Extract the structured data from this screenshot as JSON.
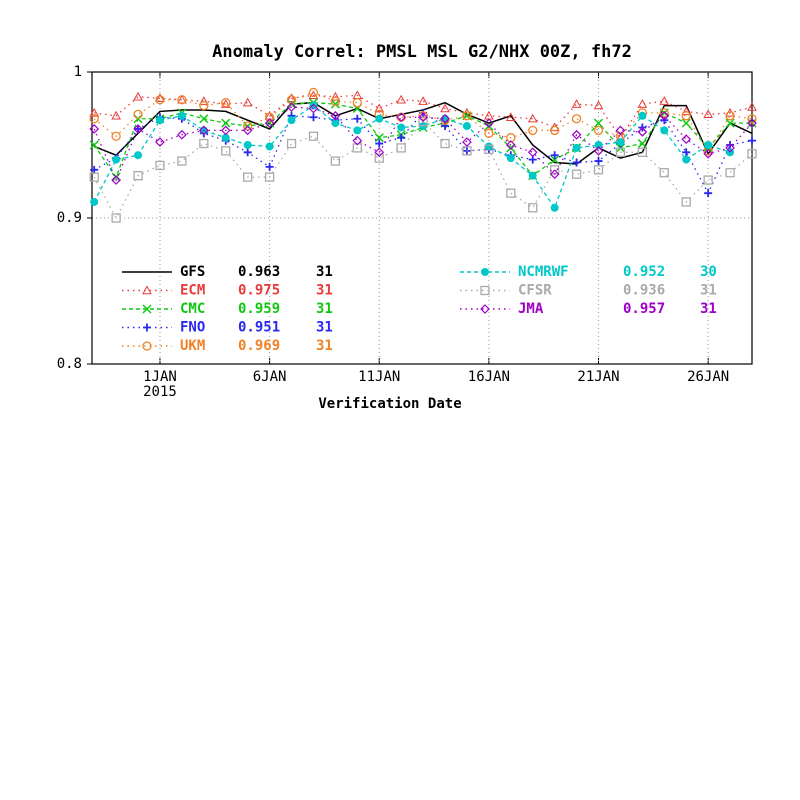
{
  "chart_data": {
    "type": "line",
    "title": "Anomaly Correl: PMSL MSL G2/NHX 00Z, fh72",
    "x_label": "Verification Date",
    "x_sublabel": "2015",
    "x": [
      -2,
      -1,
      0,
      1,
      2,
      3,
      4,
      5,
      6,
      7,
      8,
      9,
      10,
      11,
      12,
      13,
      14,
      15,
      16,
      17,
      18,
      19,
      20,
      21,
      22,
      23,
      24,
      25,
      26,
      27,
      28
    ],
    "xlim": [
      -2.1,
      28
    ],
    "xticks": [
      {
        "value": 1,
        "label": "1JAN"
      },
      {
        "value": 6,
        "label": "6JAN"
      },
      {
        "value": 11,
        "label": "11JAN"
      },
      {
        "value": 16,
        "label": "16JAN"
      },
      {
        "value": 21,
        "label": "21JAN"
      },
      {
        "value": 26,
        "label": "26JAN"
      }
    ],
    "ylim": [
      0.8,
      1
    ],
    "yticks": [
      0.8,
      0.9,
      1
    ],
    "grid": true,
    "series": [
      {
        "name": "GFS",
        "mean": 0.963,
        "count": 31,
        "color": "#000000",
        "marker": "none",
        "linestyle": "solid",
        "values": [
          0.949,
          0.943,
          0.958,
          0.973,
          0.974,
          0.974,
          0.973,
          0.967,
          0.961,
          0.978,
          0.979,
          0.97,
          0.975,
          0.968,
          0.971,
          0.974,
          0.979,
          0.971,
          0.965,
          0.97,
          0.95,
          0.938,
          0.937,
          0.948,
          0.941,
          0.945,
          0.977,
          0.977,
          0.944,
          0.965,
          0.958
        ]
      },
      {
        "name": "ECM",
        "mean": 0.975,
        "count": 31,
        "color": "#e83c3c",
        "marker": "triangle",
        "linestyle": "dotted",
        "values": [
          0.972,
          0.97,
          0.983,
          0.982,
          0.981,
          0.98,
          0.978,
          0.979,
          0.97,
          0.982,
          0.984,
          0.983,
          0.984,
          0.975,
          0.981,
          0.98,
          0.975,
          0.972,
          0.97,
          0.969,
          0.968,
          0.962,
          0.978,
          0.977,
          0.955,
          0.978,
          0.98,
          0.973,
          0.971,
          0.972,
          0.976
        ]
      },
      {
        "name": "CMC",
        "mean": 0.959,
        "count": 31,
        "color": "#10c810",
        "marker": "x",
        "linestyle": "dashed",
        "values": [
          0.95,
          0.928,
          0.968,
          0.968,
          0.972,
          0.968,
          0.965,
          0.963,
          0.965,
          0.978,
          0.979,
          0.978,
          0.975,
          0.955,
          0.957,
          0.962,
          0.965,
          0.97,
          0.963,
          0.948,
          0.929,
          0.94,
          0.948,
          0.965,
          0.948,
          0.951,
          0.972,
          0.965,
          0.948,
          0.965,
          0.965
        ]
      },
      {
        "name": "FNO",
        "mean": 0.951,
        "count": 31,
        "color": "#2828f0",
        "marker": "plus",
        "linestyle": "dotted",
        "values": [
          0.933,
          0.941,
          0.961,
          0.969,
          0.968,
          0.958,
          0.953,
          0.945,
          0.935,
          0.97,
          0.969,
          0.967,
          0.968,
          0.951,
          0.955,
          0.972,
          0.963,
          0.946,
          0.947,
          0.943,
          0.94,
          0.943,
          0.938,
          0.939,
          0.951,
          0.962,
          0.967,
          0.945,
          0.917,
          0.95,
          0.953
        ]
      },
      {
        "name": "UKM",
        "mean": 0.969,
        "count": 31,
        "color": "#f08228",
        "marker": "circle",
        "linestyle": "dotted",
        "values": [
          0.968,
          0.956,
          0.971,
          0.981,
          0.981,
          0.977,
          0.979,
          0.963,
          0.969,
          0.981,
          0.986,
          0.98,
          0.979,
          0.971,
          0.969,
          0.97,
          0.967,
          0.97,
          0.958,
          0.955,
          0.96,
          0.96,
          0.968,
          0.96,
          0.956,
          0.972,
          0.972,
          0.97,
          0.946,
          0.97,
          0.968
        ]
      },
      {
        "name": "NCMRWF",
        "mean": 0.952,
        "count": 30,
        "color": "#00c8c8",
        "marker": "dot",
        "linestyle": "dashed",
        "values": [
          0.911,
          0.94,
          0.943,
          0.967,
          0.97,
          0.96,
          0.955,
          0.95,
          0.949,
          0.967,
          0.977,
          0.965,
          0.96,
          0.968,
          0.962,
          0.963,
          0.968,
          0.963,
          0.949,
          0.941,
          0.929,
          0.907,
          0.948,
          0.95,
          0.952,
          0.97,
          0.96,
          0.94,
          0.95,
          0.945,
          null
        ]
      },
      {
        "name": "CFSR",
        "mean": 0.936,
        "count": 31,
        "color": "#aaaaaa",
        "marker": "square",
        "linestyle": "dotted",
        "values": [
          0.928,
          0.9,
          0.929,
          0.936,
          0.939,
          0.951,
          0.946,
          0.928,
          0.928,
          0.951,
          0.956,
          0.939,
          0.948,
          0.941,
          0.948,
          0.966,
          0.951,
          0.946,
          0.947,
          0.917,
          0.907,
          0.933,
          0.93,
          0.933,
          0.945,
          0.945,
          0.931,
          0.911,
          0.926,
          0.931,
          0.944
        ]
      },
      {
        "name": "JMA",
        "mean": 0.957,
        "count": 31,
        "color": "#a000c8",
        "marker": "diamond",
        "linestyle": "dotted",
        "values": [
          0.961,
          0.926,
          0.961,
          0.952,
          0.957,
          0.96,
          0.96,
          0.96,
          0.965,
          0.976,
          0.975,
          0.97,
          0.953,
          0.945,
          0.969,
          0.969,
          0.968,
          0.952,
          0.965,
          0.95,
          0.945,
          0.93,
          0.957,
          0.946,
          0.96,
          0.959,
          0.97,
          0.954,
          0.944,
          0.948,
          0.965
        ]
      }
    ]
  }
}
